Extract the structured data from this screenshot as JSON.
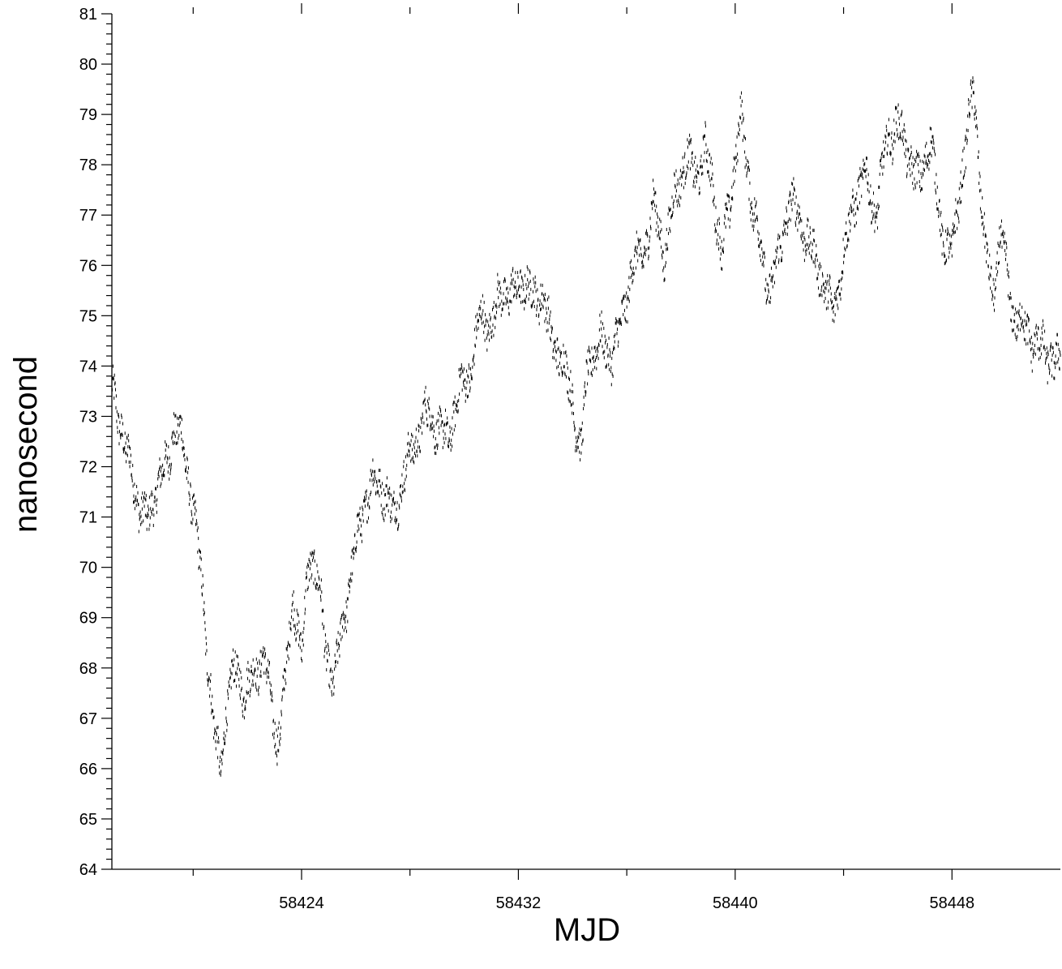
{
  "chart_data": {
    "type": "scatter",
    "title": "",
    "xlabel": "MJD",
    "ylabel": "nanosecond",
    "xlim": [
      58417,
      58452
    ],
    "ylim": [
      64,
      81
    ],
    "x_major_ticks": [
      58424,
      58432,
      58440,
      58448
    ],
    "x_minor_ticks": [
      58420,
      58428,
      58436,
      58444
    ],
    "y_ticks": [
      64,
      65,
      66,
      67,
      68,
      69,
      70,
      71,
      72,
      73,
      74,
      75,
      76,
      77,
      78,
      79,
      80,
      81
    ],
    "grid": false,
    "legend": "none",
    "marker_color": "#000000",
    "series": [
      {
        "anchors_x": [
          58417.0,
          58417.2,
          58417.5,
          58417.8,
          58418.0,
          58418.3,
          58418.6,
          58419.0,
          58419.3,
          58419.6,
          58420.0,
          58420.3,
          58420.6,
          58420.8,
          58421.0,
          58421.3,
          58421.6,
          58421.9,
          58422.2,
          58422.6,
          58422.9,
          58423.1,
          58423.4,
          58423.7,
          58424.0,
          58424.3,
          58424.6,
          58424.9,
          58425.2,
          58425.5,
          58425.8,
          58426.2,
          58426.6,
          58427.0,
          58427.4,
          58427.8,
          58428.2,
          58428.6,
          58429.0,
          58429.4,
          58429.8,
          58430.2,
          58430.6,
          58431.0,
          58431.4,
          58431.8,
          58432.2,
          58432.6,
          58432.9,
          58433.2,
          58433.6,
          58434.0,
          58434.3,
          58434.6,
          58435.0,
          58435.4,
          58435.8,
          58436.2,
          58436.6,
          58437.0,
          58437.4,
          58437.8,
          58438.2,
          58438.6,
          58438.9,
          58439.2,
          58439.5,
          58439.8,
          58440.2,
          58440.5,
          58440.8,
          58441.2,
          58441.6,
          58442.0,
          58442.4,
          58442.8,
          58443.2,
          58443.6,
          58444.0,
          58444.4,
          58444.8,
          58445.2,
          58445.6,
          58446.0,
          58446.4,
          58446.8,
          58447.2,
          58447.6,
          58448.0,
          58448.4,
          58448.8,
          58449.2,
          58449.5,
          58449.8,
          58450.2,
          58450.6,
          58451.0,
          58451.4,
          58452.0
        ],
        "anchors_y": [
          73.6,
          73.2,
          72.3,
          71.8,
          71.2,
          70.9,
          71.5,
          72.0,
          72.8,
          72.5,
          71.2,
          69.8,
          67.8,
          66.6,
          66.0,
          67.5,
          68.0,
          67.5,
          67.8,
          68.3,
          67.2,
          66.5,
          67.7,
          69.5,
          68.2,
          70.3,
          69.8,
          68.3,
          67.7,
          68.8,
          69.8,
          71.0,
          71.7,
          71.6,
          71.0,
          71.9,
          72.5,
          73.1,
          72.8,
          72.5,
          73.5,
          73.8,
          75.0,
          74.8,
          75.5,
          75.4,
          75.7,
          75.3,
          75.5,
          74.5,
          74.2,
          73.3,
          72.3,
          74.1,
          74.5,
          74.2,
          74.8,
          76.0,
          76.2,
          77.2,
          76.2,
          77.5,
          78.1,
          77.8,
          78.3,
          77.5,
          76.2,
          77.2,
          79.0,
          77.7,
          76.8,
          75.5,
          76.1,
          77.3,
          76.9,
          76.3,
          75.8,
          75.0,
          76.2,
          77.3,
          77.8,
          77.0,
          78.5,
          78.8,
          78.2,
          77.6,
          78.6,
          76.7,
          76.2,
          78.0,
          79.5,
          76.5,
          75.3,
          76.7,
          75.1,
          74.8,
          74.5,
          74.3,
          74.0
        ],
        "noise_amplitude": 0.35
      }
    ]
  }
}
